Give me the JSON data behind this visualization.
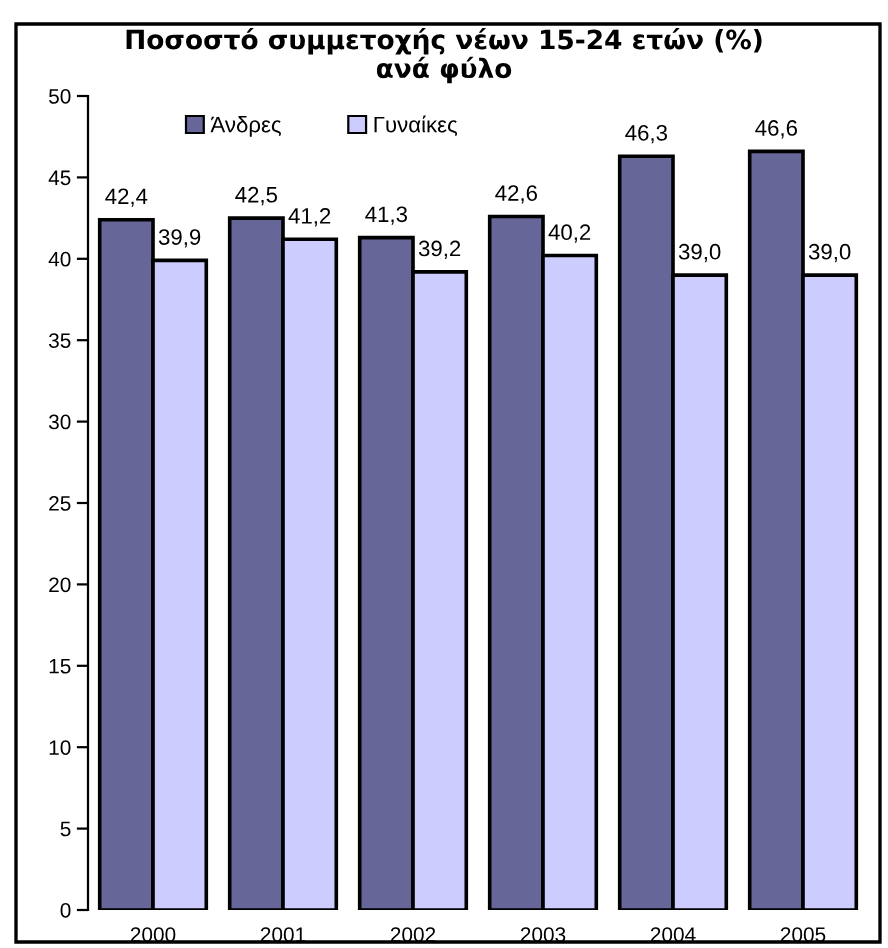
{
  "chart_data": {
    "type": "bar",
    "title": "Ποσοστό συμμετοχής νέων 15-24 ετών (%)\nανά φύλο",
    "categories": [
      "2000",
      "2001",
      "2002",
      "2003",
      "2004",
      "2005"
    ],
    "series": [
      {
        "name": "Άνδρες",
        "color": "#666699",
        "values": [
          42.4,
          42.5,
          41.3,
          42.6,
          46.3,
          46.6
        ],
        "value_labels": [
          "42,4",
          "42,5",
          "41,3",
          "42,6",
          "46,3",
          "46,6"
        ]
      },
      {
        "name": "Γυναίκες",
        "color": "#ccccff",
        "values": [
          39.9,
          41.2,
          39.2,
          40.2,
          39.0,
          39.0
        ],
        "value_labels": [
          "39,9",
          "41,2",
          "39,2",
          "40,2",
          "39,0",
          "39,0"
        ]
      }
    ],
    "ylim": [
      0,
      50
    ],
    "yticks": [
      0,
      5,
      10,
      15,
      20,
      25,
      30,
      35,
      40,
      45,
      50
    ],
    "legend": "top left",
    "grid": false
  }
}
